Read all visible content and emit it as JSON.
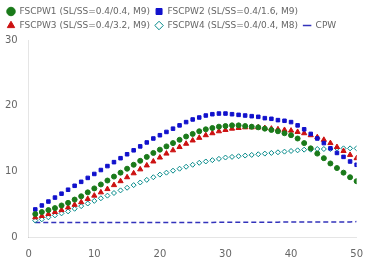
{
  "chart_data": {
    "type": "scatter",
    "title": "",
    "x": [
      1,
      2,
      3,
      4,
      5,
      6,
      7,
      8,
      9,
      10,
      11,
      12,
      13,
      14,
      15,
      16,
      17,
      18,
      19,
      20,
      21,
      22,
      23,
      24,
      25,
      26,
      27,
      28,
      29,
      30,
      31,
      32,
      33,
      34,
      35,
      36,
      37,
      38,
      39,
      40,
      41,
      42,
      43,
      44,
      45,
      46,
      47,
      48,
      49,
      50
    ],
    "xlim": [
      0,
      50
    ],
    "ylim": [
      0,
      30
    ],
    "xticks": [
      0,
      10,
      20,
      30,
      40,
      50
    ],
    "yticks": [
      0,
      10,
      20,
      30
    ],
    "grid": false,
    "legend": "upper left",
    "series": [
      {
        "name": "CPW",
        "type": "line",
        "line_style": "dashed",
        "color": "#3333bb",
        "values": [
          2.2,
          2.2,
          2.2,
          2.2,
          2.2,
          2.2,
          2.2,
          2.2,
          2.2,
          2.2,
          2.2,
          2.2,
          2.2,
          2.2,
          2.2,
          2.2,
          2.2,
          2.2,
          2.2,
          2.2,
          2.2,
          2.2,
          2.2,
          2.2,
          2.2,
          2.2,
          2.2,
          2.2,
          2.25,
          2.25,
          2.25,
          2.25,
          2.25,
          2.25,
          2.25,
          2.25,
          2.25,
          2.25,
          2.3,
          2.3,
          2.3,
          2.3,
          2.3,
          2.3,
          2.3,
          2.3,
          2.3,
          2.3,
          2.3,
          2.35
        ]
      },
      {
        "name": "FSCPW1 (SL/SS=0.4/0.4, M9)",
        "type": "scatter",
        "marker": "circle",
        "color": "#1a7a1a",
        "values": [
          3.5,
          3.8,
          4.1,
          4.4,
          4.8,
          5.2,
          5.7,
          6.2,
          6.8,
          7.4,
          8.0,
          8.6,
          9.2,
          9.8,
          10.4,
          11.0,
          11.6,
          12.2,
          12.8,
          13.3,
          13.8,
          14.3,
          14.8,
          15.3,
          15.7,
          16.1,
          16.4,
          16.6,
          16.8,
          16.9,
          17.0,
          17.0,
          16.9,
          16.8,
          16.7,
          16.5,
          16.3,
          16.1,
          15.8,
          15.5,
          15.0,
          14.3,
          13.5,
          12.7,
          12.0,
          11.2,
          10.5,
          9.8,
          9.1,
          8.5
        ]
      },
      {
        "name": "FSCPW2 (SL/SS=0.4/1.6, M9)",
        "type": "scatter",
        "marker": "square",
        "color": "#1111cc",
        "values": [
          4.2,
          4.8,
          5.4,
          6.0,
          6.6,
          7.2,
          7.8,
          8.4,
          9.0,
          9.6,
          10.2,
          10.8,
          11.4,
          12.0,
          12.6,
          13.2,
          13.8,
          14.4,
          15.0,
          15.5,
          16.0,
          16.5,
          17.0,
          17.5,
          17.9,
          18.2,
          18.5,
          18.7,
          18.8,
          18.8,
          18.7,
          18.6,
          18.5,
          18.4,
          18.3,
          18.1,
          18.0,
          17.8,
          17.7,
          17.5,
          17.0,
          16.4,
          15.7,
          15.0,
          14.3,
          13.5,
          12.8,
          12.2,
          11.5,
          11.0
        ]
      },
      {
        "name": "FSCPW3 (SL/SS=0.4/3.2, M9)",
        "type": "scatter",
        "marker": "triangle",
        "color": "#cc1111",
        "values": [
          3.0,
          3.2,
          3.5,
          3.8,
          4.1,
          4.5,
          4.9,
          5.3,
          5.8,
          6.3,
          6.8,
          7.3,
          7.9,
          8.5,
          9.1,
          9.7,
          10.3,
          10.9,
          11.5,
          12.1,
          12.7,
          13.2,
          13.7,
          14.2,
          14.7,
          15.1,
          15.5,
          15.8,
          16.1,
          16.3,
          16.5,
          16.6,
          16.7,
          16.7,
          16.7,
          16.6,
          16.5,
          16.4,
          16.3,
          16.2,
          16.0,
          15.8,
          15.5,
          15.2,
          14.8,
          14.3,
          13.7,
          13.1,
          12.5,
          12.0
        ]
      },
      {
        "name": "FSCPW4 (SL/SS=0.4/0.4, M8)",
        "type": "scatter",
        "marker": "open_diamond",
        "color": "#008888",
        "values": [
          2.5,
          2.7,
          3.0,
          3.3,
          3.6,
          3.9,
          4.3,
          4.7,
          5.1,
          5.5,
          5.9,
          6.3,
          6.7,
          7.1,
          7.5,
          7.9,
          8.3,
          8.7,
          9.1,
          9.5,
          9.8,
          10.1,
          10.4,
          10.7,
          11.0,
          11.3,
          11.5,
          11.7,
          11.9,
          12.1,
          12.2,
          12.3,
          12.4,
          12.5,
          12.6,
          12.7,
          12.8,
          12.9,
          13.0,
          13.1,
          13.2,
          13.3,
          13.3,
          13.4,
          13.4,
          13.4,
          13.5,
          13.5,
          13.5,
          13.5
        ]
      }
    ]
  }
}
